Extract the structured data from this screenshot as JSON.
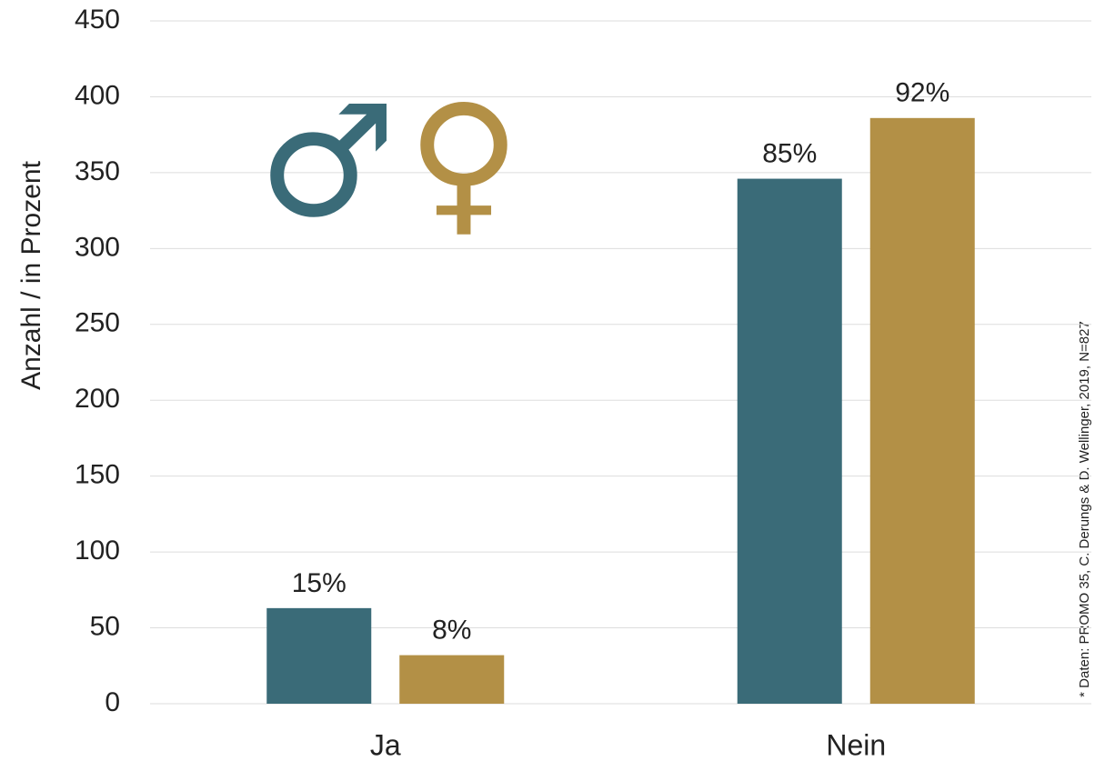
{
  "chart_data": {
    "type": "bar",
    "y_label": "Anzahl / in Prozent",
    "source": "* Daten: PROMO 35, C. Derungs & D. Wellinger, 2019, N=827",
    "categories": [
      "Ja",
      "Nein"
    ],
    "series": [
      {
        "name": "♂",
        "color": "#3a6b78",
        "values": [
          63,
          346
        ],
        "value_labels": [
          "15%",
          "85%"
        ]
      },
      {
        "name": "♀",
        "color": "#b39046",
        "values": [
          32,
          386
        ],
        "value_labels": [
          "8%",
          "92%"
        ]
      }
    ],
    "ylim": [
      0,
      450
    ],
    "yticks": [
      0,
      50,
      100,
      150,
      200,
      250,
      300,
      350,
      400,
      450
    ],
    "grid": true
  }
}
